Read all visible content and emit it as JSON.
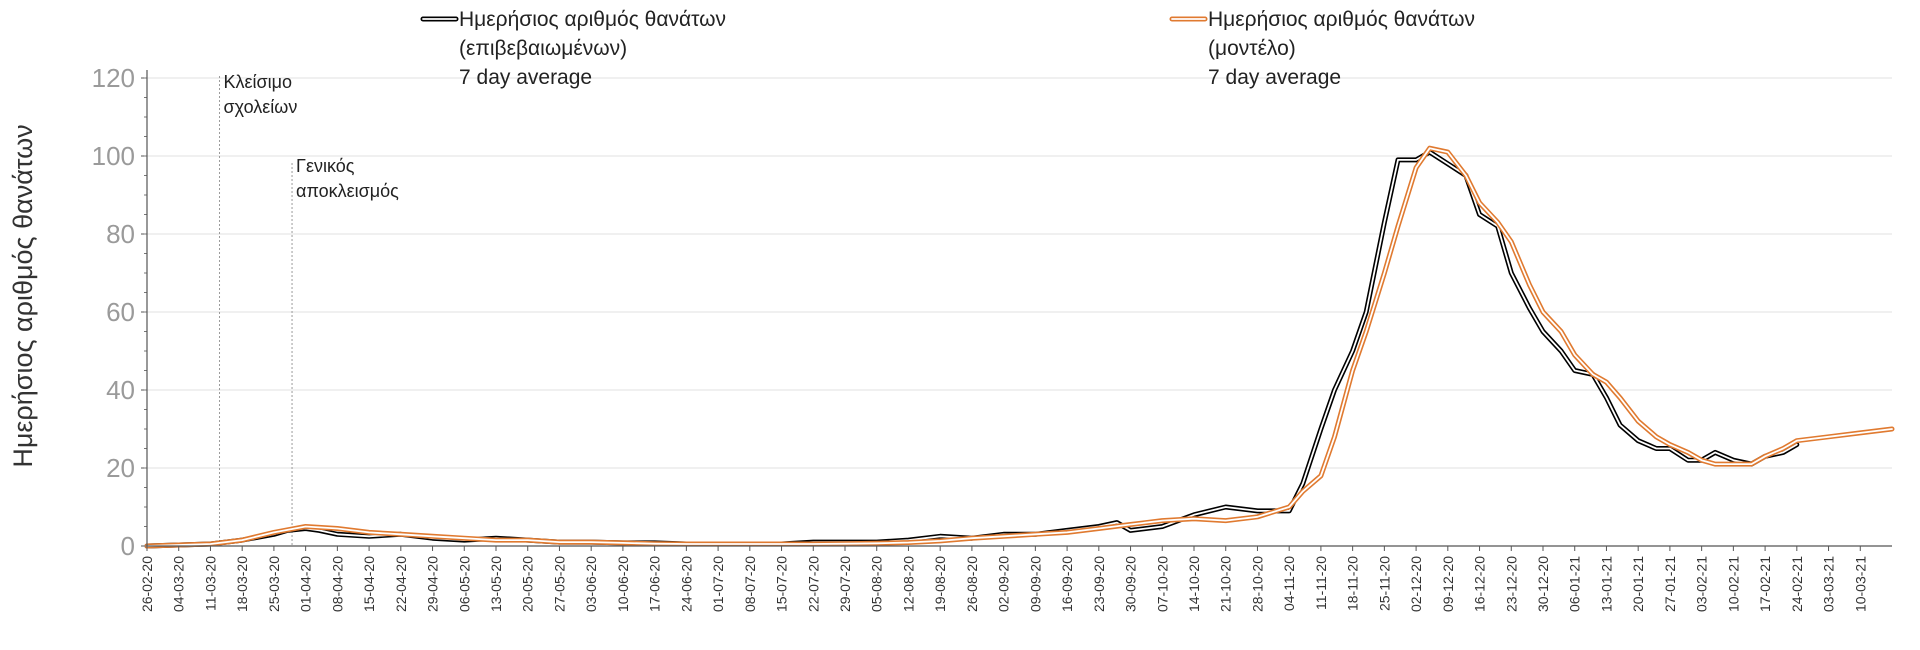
{
  "chart_data": {
    "type": "line",
    "ylabel": "Ημερήσιος αριθμός θανάτων",
    "xlabel": "",
    "ylim": [
      0,
      120
    ],
    "yticks": [
      0,
      20,
      40,
      60,
      80,
      100,
      120
    ],
    "grid": "horizontal",
    "legend_position": "top",
    "x_start": "26-02-20",
    "x_end": "17-03-21",
    "x_tick_labels": [
      "26-02-20",
      "04-03-20",
      "11-03-20",
      "18-03-20",
      "25-03-20",
      "01-04-20",
      "08-04-20",
      "15-04-20",
      "22-04-20",
      "29-04-20",
      "06-05-20",
      "13-05-20",
      "20-05-20",
      "27-05-20",
      "03-06-20",
      "10-06-20",
      "17-06-20",
      "24-06-20",
      "01-07-20",
      "08-07-20",
      "15-07-20",
      "22-07-20",
      "29-07-20",
      "05-08-20",
      "12-08-20",
      "19-08-20",
      "26-08-20",
      "02-09-20",
      "09-09-20",
      "16-09-20",
      "23-09-20",
      "30-09-20",
      "07-10-20",
      "14-10-20",
      "21-10-20",
      "28-10-20",
      "04-11-20",
      "11-11-20",
      "18-11-20",
      "25-11-20",
      "02-12-20",
      "09-12-20",
      "16-12-20",
      "23-12-20",
      "30-12-20",
      "06-01-21",
      "13-01-21",
      "20-01-21",
      "27-01-21",
      "03-02-21",
      "10-02-21",
      "17-02-21",
      "24-02-21",
      "03-03-21",
      "10-03-21"
    ],
    "series": [
      {
        "name": "Ημερήσιος αριθμός θανάτων (επιβεβαιωμένων) 7 day average",
        "legend_lines": [
          "Ημερήσιος αριθμός θανάτων",
          "(επιβεβαιωμένων)",
          "7 day average"
        ],
        "color": "#000000",
        "x": [
          "26-02-20",
          "11-03-20",
          "18-03-20",
          "25-03-20",
          "28-03-20",
          "01-04-20",
          "04-04-20",
          "08-04-20",
          "15-04-20",
          "22-04-20",
          "29-04-20",
          "06-05-20",
          "13-05-20",
          "20-05-20",
          "27-05-20",
          "03-06-20",
          "10-06-20",
          "17-06-20",
          "24-06-20",
          "01-07-20",
          "08-07-20",
          "15-07-20",
          "22-07-20",
          "29-07-20",
          "05-08-20",
          "12-08-20",
          "19-08-20",
          "26-08-20",
          "02-09-20",
          "09-09-20",
          "16-09-20",
          "23-09-20",
          "27-09-20",
          "30-09-20",
          "07-10-20",
          "14-10-20",
          "21-10-20",
          "28-10-20",
          "04-11-20",
          "07-11-20",
          "11-11-20",
          "14-11-20",
          "18-11-20",
          "21-11-20",
          "25-11-20",
          "28-11-20",
          "02-12-20",
          "05-12-20",
          "09-12-20",
          "13-12-20",
          "16-12-20",
          "20-12-20",
          "23-12-20",
          "27-12-20",
          "30-12-20",
          "03-01-21",
          "06-01-21",
          "10-01-21",
          "13-01-21",
          "16-01-21",
          "20-01-21",
          "24-01-21",
          "27-01-21",
          "31-01-21",
          "03-02-21",
          "06-02-21",
          "10-02-21",
          "14-02-21",
          "17-02-21",
          "21-02-21",
          "24-02-21"
        ],
        "y": [
          0,
          0.5,
          1.5,
          3,
          4,
          4.5,
          4,
          3,
          2.5,
          3,
          2,
          1.5,
          2,
          1.5,
          1,
          1,
          0.8,
          0.8,
          0.5,
          0.5,
          0.5,
          0.5,
          1,
          1,
          1,
          1.5,
          2.5,
          2,
          3,
          3,
          4,
          5,
          6,
          4,
          5,
          8,
          10,
          9,
          9,
          16,
          30,
          40,
          50,
          60,
          83,
          99,
          99,
          101,
          98,
          95,
          85,
          82,
          70,
          61,
          55,
          50,
          45,
          44,
          38,
          31,
          27,
          25,
          25,
          22,
          22,
          24,
          22,
          21,
          23,
          24,
          26
        ]
      },
      {
        "name": "Ημερήσιος αριθμός θανάτων (μοντέλο) 7 day average",
        "legend_lines": [
          "Ημερήσιος αριθμός θανάτων",
          "(μοντέλο)",
          "7 day average"
        ],
        "color": "#e07a30",
        "x": [
          "26-02-20",
          "11-03-20",
          "18-03-20",
          "25-03-20",
          "01-04-20",
          "08-04-20",
          "15-04-20",
          "22-04-20",
          "29-04-20",
          "06-05-20",
          "13-05-20",
          "20-05-20",
          "27-05-20",
          "03-06-20",
          "10-06-20",
          "17-06-20",
          "24-06-20",
          "01-07-20",
          "08-07-20",
          "15-07-20",
          "22-07-20",
          "29-07-20",
          "05-08-20",
          "12-08-20",
          "19-08-20",
          "26-08-20",
          "02-09-20",
          "09-09-20",
          "16-09-20",
          "23-09-20",
          "30-09-20",
          "07-10-20",
          "14-10-20",
          "21-10-20",
          "28-10-20",
          "04-11-20",
          "07-11-20",
          "11-11-20",
          "14-11-20",
          "18-11-20",
          "21-11-20",
          "25-11-20",
          "28-11-20",
          "02-12-20",
          "05-12-20",
          "09-12-20",
          "13-12-20",
          "16-12-20",
          "20-12-20",
          "23-12-20",
          "27-12-20",
          "30-12-20",
          "03-01-21",
          "06-01-21",
          "10-01-21",
          "13-01-21",
          "16-01-21",
          "20-01-21",
          "24-01-21",
          "27-01-21",
          "31-01-21",
          "03-02-21",
          "06-02-21",
          "10-02-21",
          "14-02-21",
          "17-02-21",
          "21-02-21",
          "24-02-21",
          "03-03-21",
          "10-03-21",
          "17-03-21"
        ],
        "y": [
          0,
          0.5,
          1.5,
          3.5,
          5,
          4.5,
          3.5,
          3,
          2.5,
          2,
          1.5,
          1.5,
          1,
          1,
          0.8,
          0.6,
          0.5,
          0.5,
          0.5,
          0.5,
          0.5,
          0.6,
          0.7,
          0.9,
          1.3,
          2,
          2.5,
          3,
          3.5,
          4.5,
          5.5,
          6.5,
          7,
          6.5,
          7.5,
          10,
          14,
          18,
          28,
          45,
          55,
          70,
          82,
          97,
          102,
          101,
          95,
          88,
          83,
          78,
          67,
          60,
          55,
          49,
          44,
          42,
          38,
          32,
          28,
          26,
          24,
          22,
          21,
          21,
          21,
          23,
          25,
          27,
          28,
          29,
          30
        ]
      }
    ],
    "annotations": [
      {
        "x": "13-03-20",
        "lines": [
          "Κλείσιμο",
          "σχολείων"
        ]
      },
      {
        "x": "29-03-20",
        "lines": [
          "Γενικός",
          "αποκλεισμός"
        ]
      }
    ]
  }
}
